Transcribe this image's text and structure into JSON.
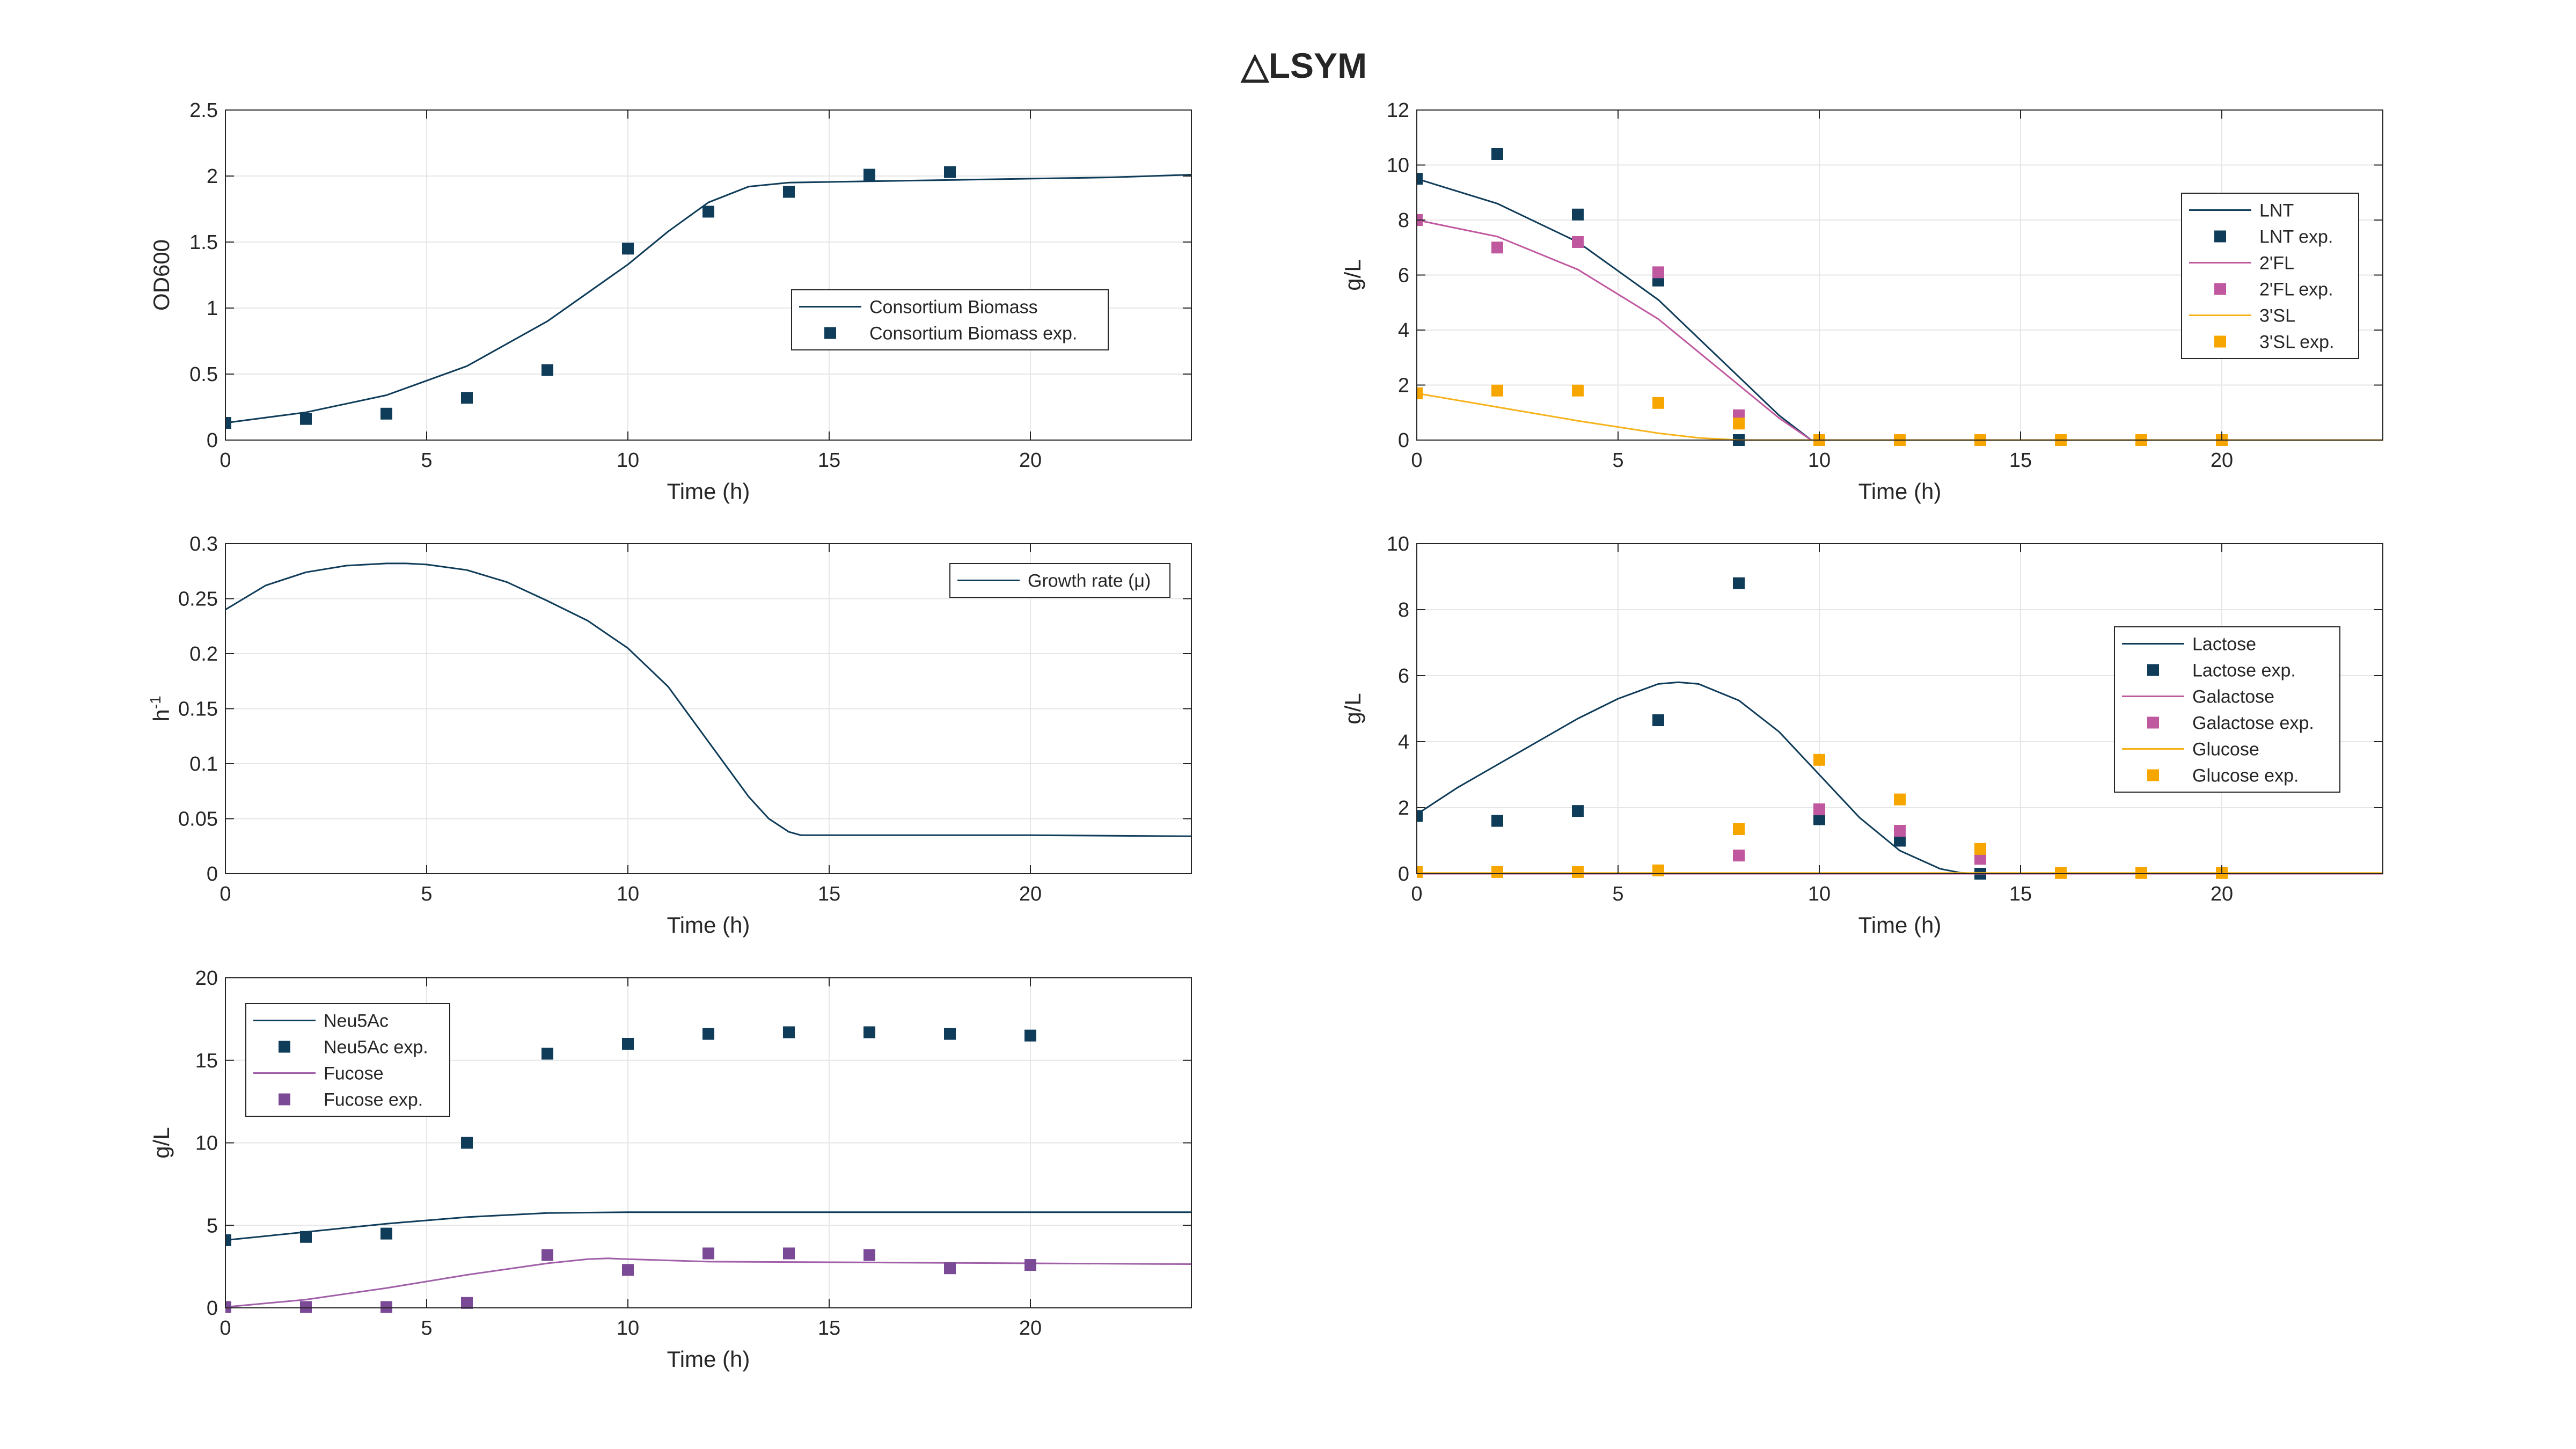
{
  "figure": {
    "title": "△LSYM"
  },
  "chart_data": [
    {
      "id": "biomass",
      "type": "line",
      "xlabel": "Time (h)",
      "ylabel": "OD600",
      "xlim": [
        0,
        24
      ],
      "ylim": [
        0,
        2.5
      ],
      "xticks": [
        0,
        5,
        10,
        15,
        20
      ],
      "yticks": [
        0,
        0.5,
        1,
        1.5,
        2,
        2.5
      ],
      "ytick_labels": [
        "0",
        "0.5",
        "1",
        "1.5",
        "2",
        "2.5"
      ],
      "grid": true,
      "legend_position": "middle-right",
      "series": [
        {
          "name": "Consortium Biomass",
          "kind": "line",
          "color": "#0f3c59",
          "x": [
            0,
            2,
            4,
            6,
            8,
            10,
            11,
            12,
            13,
            14,
            16,
            18,
            20,
            22,
            24
          ],
          "y": [
            0.13,
            0.21,
            0.34,
            0.56,
            0.9,
            1.33,
            1.58,
            1.8,
            1.92,
            1.95,
            1.96,
            1.97,
            1.98,
            1.99,
            2.01
          ]
        },
        {
          "name": "Consortium Biomass exp.",
          "kind": "scatter",
          "color": "#0f3c59",
          "x": [
            0,
            2,
            4,
            6,
            8,
            10,
            12,
            14,
            16,
            18
          ],
          "y": [
            0.13,
            0.16,
            0.2,
            0.32,
            0.53,
            1.45,
            1.73,
            1.88,
            2.01,
            2.03
          ]
        }
      ]
    },
    {
      "id": "hmo",
      "type": "line",
      "xlabel": "Time (h)",
      "ylabel": "g/L",
      "xlim": [
        0,
        24
      ],
      "ylim": [
        0,
        12
      ],
      "xticks": [
        0,
        5,
        10,
        15,
        20
      ],
      "yticks": [
        0,
        2,
        4,
        6,
        8,
        10,
        12
      ],
      "ytick_labels": [
        "0",
        "2",
        "4",
        "6",
        "8",
        "10",
        "12"
      ],
      "grid": true,
      "legend_position": "right",
      "series": [
        {
          "name": "LNT",
          "kind": "line",
          "color": "#0f3c59",
          "x": [
            0,
            2,
            4,
            6,
            8,
            9,
            9.8,
            10,
            24
          ],
          "y": [
            9.5,
            8.6,
            7.2,
            5.1,
            2.3,
            0.9,
            0.0,
            0,
            0
          ]
        },
        {
          "name": "LNT exp.",
          "kind": "scatter",
          "color": "#0f3c59",
          "x": [
            0,
            2,
            4,
            6,
            8,
            10,
            12,
            14,
            16,
            18,
            20
          ],
          "y": [
            9.5,
            10.4,
            8.2,
            5.8,
            0.0,
            0,
            0,
            0,
            0,
            0,
            0
          ]
        },
        {
          "name": "2'FL",
          "kind": "line",
          "color": "#c0589f",
          "x": [
            0,
            2,
            4,
            6,
            8,
            9,
            9.8,
            10,
            24
          ],
          "y": [
            8.0,
            7.4,
            6.2,
            4.4,
            2.0,
            0.8,
            0.0,
            0,
            0
          ]
        },
        {
          "name": "2'FL exp.",
          "kind": "scatter",
          "color": "#c0589f",
          "x": [
            0,
            2,
            4,
            6,
            8,
            10,
            12,
            14,
            16,
            18,
            20
          ],
          "y": [
            8.0,
            7.0,
            7.2,
            6.1,
            0.9,
            0,
            0,
            0,
            0,
            0,
            0
          ]
        },
        {
          "name": "3'SL",
          "kind": "line",
          "color": "#f7b21a",
          "x": [
            0,
            2,
            4,
            6,
            7,
            8,
            24
          ],
          "y": [
            1.7,
            1.2,
            0.7,
            0.25,
            0.08,
            0.0,
            0
          ]
        },
        {
          "name": "3'SL exp.",
          "kind": "scatter",
          "color": "#f7a600",
          "x": [
            0,
            2,
            4,
            6,
            8,
            10,
            12,
            14,
            16,
            18,
            20
          ],
          "y": [
            1.7,
            1.8,
            1.8,
            1.35,
            0.6,
            0,
            0,
            0,
            0,
            0,
            0
          ]
        }
      ]
    },
    {
      "id": "growth",
      "type": "line",
      "xlabel": "Time (h)",
      "ylabel": "h",
      "ylabel_sup": "-1",
      "xlim": [
        0,
        24
      ],
      "ylim": [
        0,
        0.3
      ],
      "xticks": [
        0,
        5,
        10,
        15,
        20
      ],
      "yticks": [
        0,
        0.05,
        0.1,
        0.15,
        0.2,
        0.25,
        0.3
      ],
      "ytick_labels": [
        "0",
        "0.05",
        "0.1",
        "0.15",
        "0.2",
        "0.25",
        "0.3"
      ],
      "grid": true,
      "legend_position": "top-right",
      "series": [
        {
          "name": "Growth rate (μ)",
          "kind": "line",
          "color": "#0f3c59",
          "x": [
            0,
            1,
            2,
            3,
            4,
            4.5,
            5,
            6,
            7,
            8,
            9,
            10,
            11,
            12,
            13,
            13.5,
            14,
            14.3,
            16,
            20,
            24
          ],
          "y": [
            0.24,
            0.262,
            0.274,
            0.28,
            0.282,
            0.282,
            0.281,
            0.276,
            0.265,
            0.248,
            0.23,
            0.205,
            0.17,
            0.12,
            0.07,
            0.05,
            0.038,
            0.035,
            0.035,
            0.035,
            0.034
          ]
        }
      ]
    },
    {
      "id": "sugars",
      "type": "line",
      "xlabel": "Time (h)",
      "ylabel": "g/L",
      "xlim": [
        0,
        24
      ],
      "ylim": [
        0,
        10
      ],
      "xticks": [
        0,
        5,
        10,
        15,
        20
      ],
      "yticks": [
        0,
        2,
        4,
        6,
        8,
        10
      ],
      "ytick_labels": [
        "0",
        "2",
        "4",
        "6",
        "8",
        "10"
      ],
      "grid": true,
      "legend_position": "right",
      "series": [
        {
          "name": "Lactose",
          "kind": "line",
          "color": "#0f3c59",
          "x": [
            0,
            1,
            2,
            3,
            4,
            5,
            6,
            6.5,
            7,
            8,
            9,
            10,
            11,
            12,
            13,
            13.5,
            14,
            24
          ],
          "y": [
            1.8,
            2.6,
            3.3,
            4.0,
            4.7,
            5.3,
            5.75,
            5.8,
            5.75,
            5.25,
            4.3,
            3.0,
            1.7,
            0.7,
            0.15,
            0.03,
            0.0,
            0
          ]
        },
        {
          "name": "Lactose exp.",
          "kind": "scatter",
          "color": "#0f3c59",
          "x": [
            0,
            2,
            4,
            6,
            8,
            10,
            12,
            14
          ],
          "y": [
            1.75,
            1.6,
            1.9,
            4.65,
            8.8,
            1.65,
            1.0,
            0.0
          ]
        },
        {
          "name": "Galactose",
          "kind": "line",
          "color": "#c0589f",
          "x": [
            0,
            24
          ],
          "y": [
            0,
            0
          ]
        },
        {
          "name": "Galactose exp.",
          "kind": "scatter",
          "color": "#c0589f",
          "x": [
            8,
            10,
            12,
            14
          ],
          "y": [
            0.55,
            1.95,
            1.3,
            0.45
          ]
        },
        {
          "name": "Glucose",
          "kind": "line",
          "color": "#f7b21a",
          "x": [
            0,
            24
          ],
          "y": [
            0.02,
            0.02
          ]
        },
        {
          "name": "Glucose exp.",
          "kind": "scatter",
          "color": "#f7a600",
          "x": [
            0,
            2,
            4,
            6,
            8,
            10,
            12,
            14,
            16,
            18,
            20
          ],
          "y": [
            0.05,
            0.05,
            0.05,
            0.1,
            1.35,
            3.45,
            2.25,
            0.75,
            0.02,
            0.02,
            0.02
          ]
        }
      ]
    },
    {
      "id": "monomers",
      "type": "line",
      "xlabel": "Time (h)",
      "ylabel": "g/L",
      "xlim": [
        0,
        24
      ],
      "ylim": [
        0,
        20
      ],
      "xticks": [
        0,
        5,
        10,
        15,
        20
      ],
      "yticks": [
        0,
        5,
        10,
        15,
        20
      ],
      "ytick_labels": [
        "0",
        "5",
        "10",
        "15",
        "20"
      ],
      "grid": true,
      "legend_position": "top-left",
      "series": [
        {
          "name": "Neu5Ac",
          "kind": "line",
          "color": "#0f3c59",
          "x": [
            0,
            2,
            4,
            6,
            8,
            10,
            14,
            18,
            24
          ],
          "y": [
            4.1,
            4.6,
            5.1,
            5.5,
            5.75,
            5.8,
            5.8,
            5.8,
            5.8
          ]
        },
        {
          "name": "Neu5Ac exp.",
          "kind": "scatter",
          "color": "#0f3c59",
          "x": [
            0,
            2,
            4,
            6,
            8,
            10,
            12,
            14,
            16,
            18,
            20
          ],
          "y": [
            4.1,
            4.3,
            4.5,
            10.0,
            15.4,
            16.0,
            16.6,
            16.7,
            16.7,
            16.6,
            16.5
          ]
        },
        {
          "name": "Fucose",
          "kind": "line",
          "color": "#a05fa8",
          "x": [
            0,
            2,
            4,
            6,
            8,
            9,
            9.5,
            10,
            12,
            16,
            20,
            24
          ],
          "y": [
            0.05,
            0.5,
            1.2,
            2.0,
            2.7,
            2.95,
            3.0,
            2.95,
            2.8,
            2.75,
            2.7,
            2.65
          ]
        },
        {
          "name": "Fucose exp.",
          "kind": "scatter",
          "color": "#7b4a96",
          "x": [
            0,
            2,
            4,
            6,
            8,
            10,
            12,
            14,
            16,
            18,
            20
          ],
          "y": [
            0.05,
            0.05,
            0.05,
            0.3,
            3.2,
            2.3,
            3.3,
            3.3,
            3.2,
            2.4,
            2.6
          ]
        }
      ]
    }
  ]
}
